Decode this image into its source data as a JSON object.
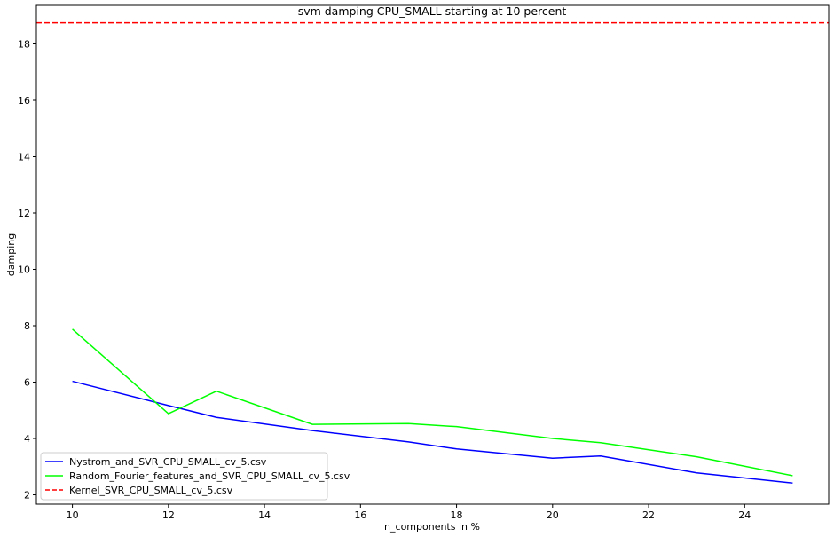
{
  "chart_data": {
    "type": "line",
    "title": "svm damping CPU_SMALL starting at 10 percent",
    "xlabel": "n_components in %",
    "ylabel": "damping",
    "xlim": [
      9.25,
      25.75
    ],
    "ylim": [
      1.67,
      19.37
    ],
    "xticks": [
      10,
      12,
      14,
      16,
      18,
      20,
      22,
      24
    ],
    "yticks": [
      2,
      4,
      6,
      8,
      10,
      12,
      14,
      16,
      18
    ],
    "grid": false,
    "legend_position": "lower-left",
    "x": [
      10,
      12,
      13,
      15,
      17,
      18,
      20,
      21,
      23,
      25
    ],
    "series": [
      {
        "name": "Nystrom_and_SVR_CPU_SMALL_cv_5.csv",
        "color": "#0000ff",
        "style": "solid",
        "values": [
          6.03,
          5.17,
          4.75,
          4.28,
          3.88,
          3.63,
          3.3,
          3.38,
          2.78,
          2.42
        ]
      },
      {
        "name": "Random_Fourier_features_and_SVR_CPU_SMALL_cv_5.csv",
        "color": "#00ff00",
        "style": "solid",
        "values": [
          7.88,
          4.88,
          5.68,
          4.5,
          4.53,
          4.42,
          4.0,
          3.85,
          3.35,
          2.68
        ]
      },
      {
        "name": "Kernel_SVR_CPU_SMALL_cv_5.csv",
        "color": "#ff0000",
        "style": "dashed",
        "constant": 18.75
      }
    ]
  }
}
